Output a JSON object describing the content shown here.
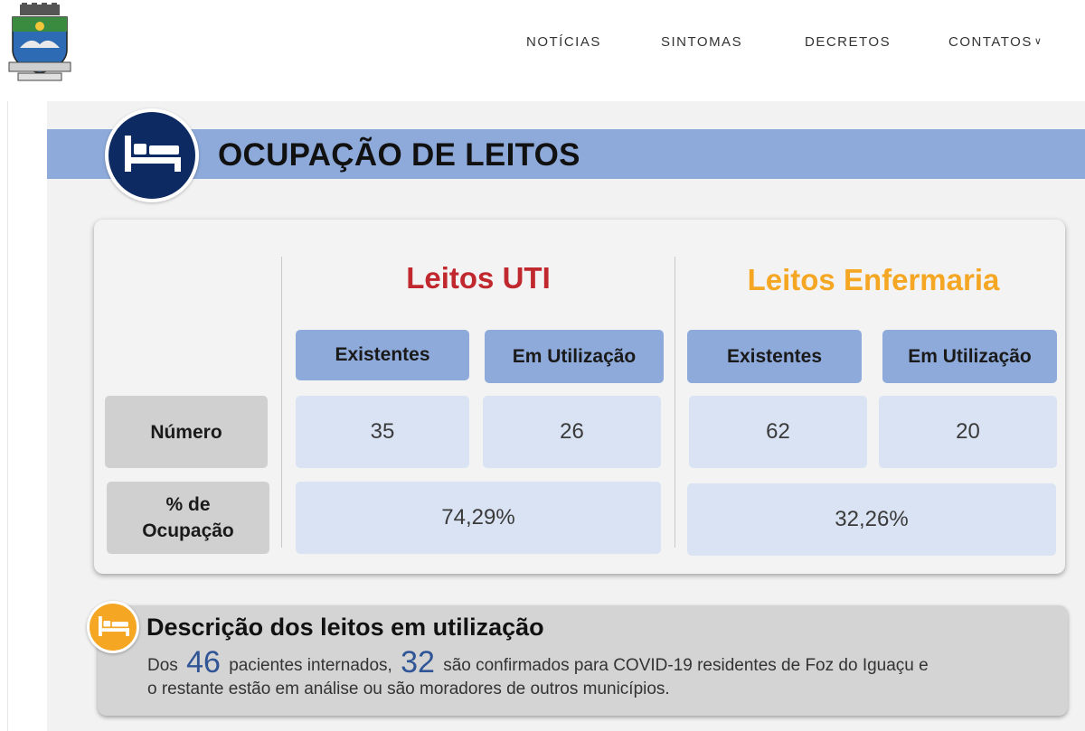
{
  "nav": {
    "items": [
      "NOTÍCIAS",
      "SINTOMAS",
      "DECRETOS",
      "CONTATOS"
    ]
  },
  "section": {
    "title": "OCUPAÇÃO DE LEITOS"
  },
  "table": {
    "groups": [
      {
        "title": "Leitos UTI",
        "color": "#c0282d",
        "headers": [
          "Existentes",
          "Em Utilização"
        ],
        "numbers": [
          "35",
          "26"
        ],
        "occupancy": "74,29%"
      },
      {
        "title": "Leitos Enfermaria",
        "color": "#f5a623",
        "headers": [
          "Existentes",
          "Em Utilização"
        ],
        "numbers": [
          "62",
          "20"
        ],
        "occupancy": "32,26%"
      }
    ],
    "row_labels": {
      "number": "Número",
      "occupancy_line1": "% de",
      "occupancy_line2": "Ocupação"
    }
  },
  "description": {
    "title": "Descrição dos leitos em utilização",
    "text_part1": "Dos",
    "patients": "46",
    "text_part2": "pacientes internados,",
    "confirmed": "32",
    "text_part3": "são confirmados para COVID-19 residentes de Foz do Iguaçu e",
    "text_part4": "o restante estão em análise ou são moradores de outros municípios."
  },
  "colors": {
    "title_band": "#8eaadb",
    "header_cell": "#8eaadb",
    "value_cell": "#dae3f3",
    "label_cell": "#d0d0d0",
    "navy": "#0e2a63",
    "orange": "#f5a623",
    "number_highlight": "#2f5596"
  },
  "icons": [
    "city-coat-of-arms-logo",
    "bed-icon",
    "chevron-down-icon"
  ]
}
